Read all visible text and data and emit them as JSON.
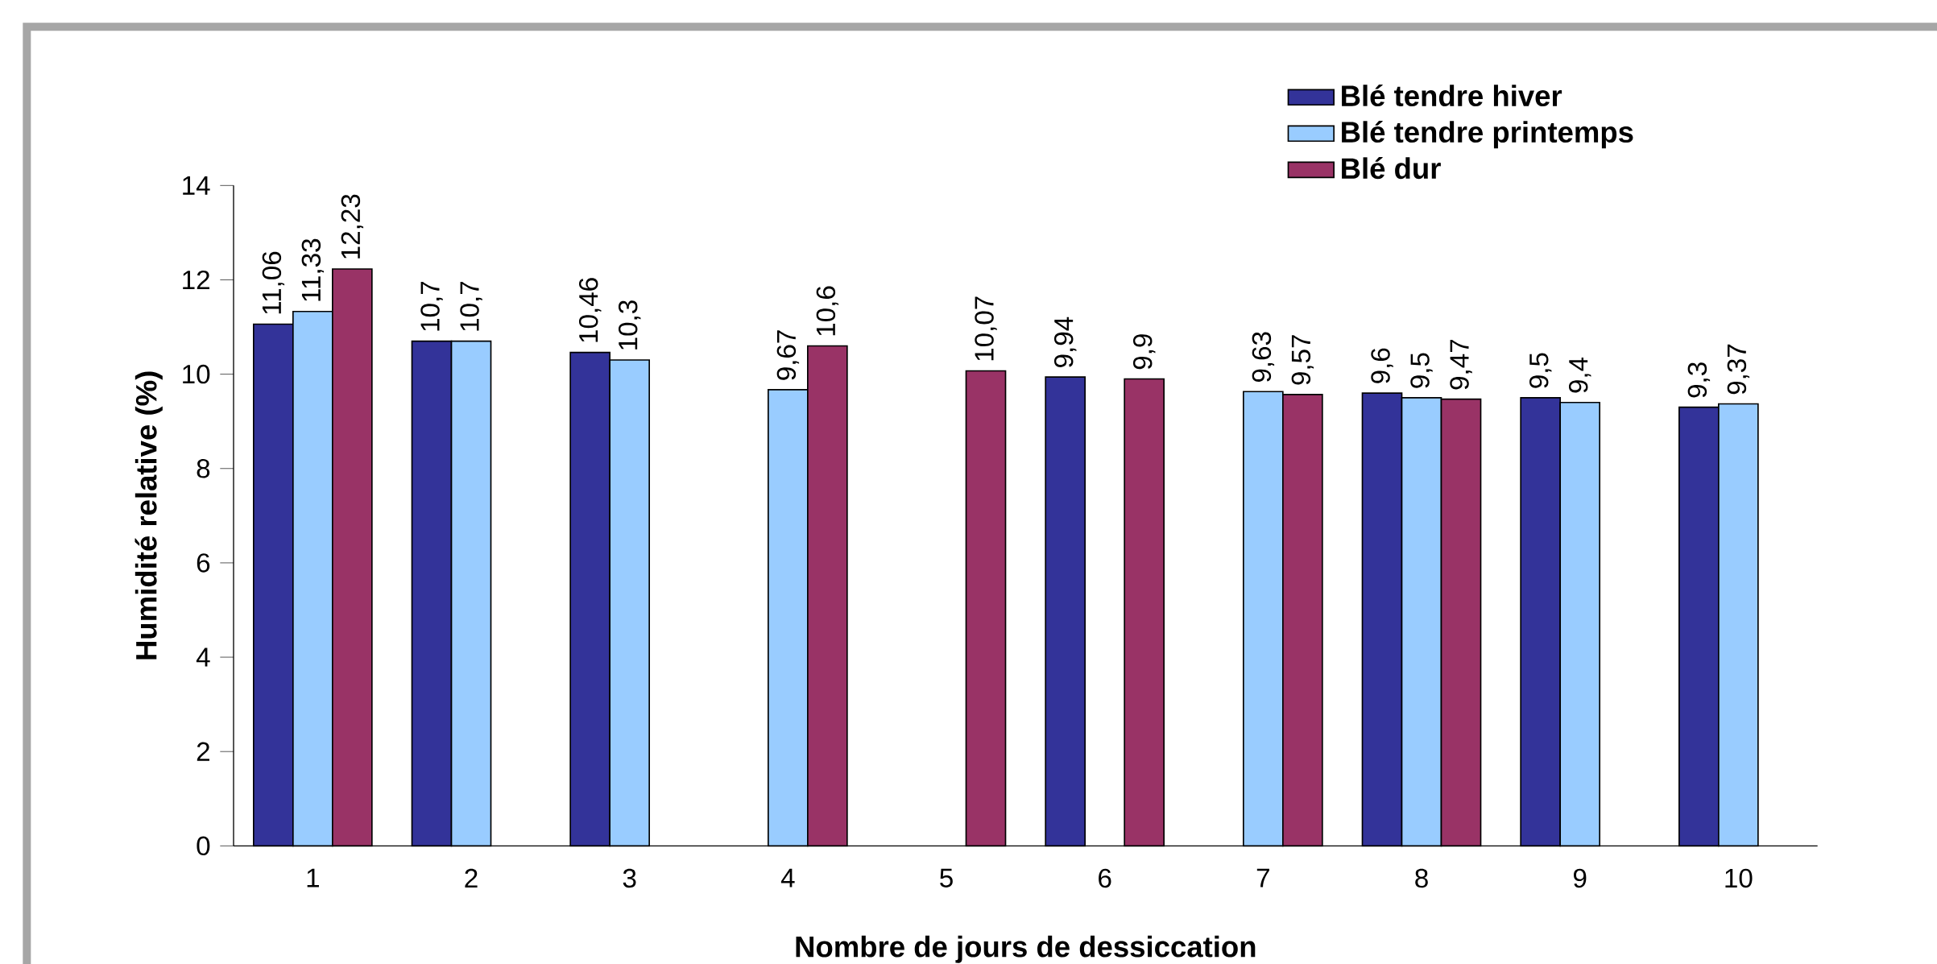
{
  "chart_data": {
    "type": "bar",
    "xlabel": "Nombre de jours de dessiccation",
    "ylabel": "Humidité relative (%)",
    "categories": [
      "1",
      "2",
      "3",
      "4",
      "5",
      "6",
      "7",
      "8",
      "9",
      "10"
    ],
    "ylim": [
      0,
      14
    ],
    "yticks": [
      0,
      2,
      4,
      6,
      8,
      10,
      12,
      14
    ],
    "legend": "top right",
    "series": [
      {
        "name": "Blé tendre hiver",
        "color": "#333399",
        "values": [
          11.06,
          10.7,
          10.46,
          null,
          null,
          9.94,
          null,
          9.6,
          9.5,
          9.3
        ],
        "value_labels": [
          "11,06",
          "10,7",
          "10,46",
          null,
          null,
          "9,94",
          null,
          "9,6",
          "9,5",
          "9,3"
        ]
      },
      {
        "name": "Blé tendre printemps",
        "color": "#99ccff",
        "values": [
          11.33,
          10.7,
          10.3,
          9.67,
          null,
          null,
          9.63,
          9.5,
          9.4,
          9.37
        ],
        "value_labels": [
          "11,33",
          "10,7",
          "10,3",
          "9,67",
          null,
          null,
          "9,63",
          "9,5",
          "9,4",
          "9,37"
        ]
      },
      {
        "name": "Blé dur",
        "color": "#993366",
        "values": [
          12.23,
          null,
          null,
          10.6,
          10.07,
          9.9,
          9.57,
          9.47,
          null,
          null
        ],
        "value_labels": [
          "12,23",
          null,
          null,
          "10,6",
          "10,07",
          "9,9",
          "9,57",
          "9,47",
          null,
          null
        ]
      }
    ]
  }
}
